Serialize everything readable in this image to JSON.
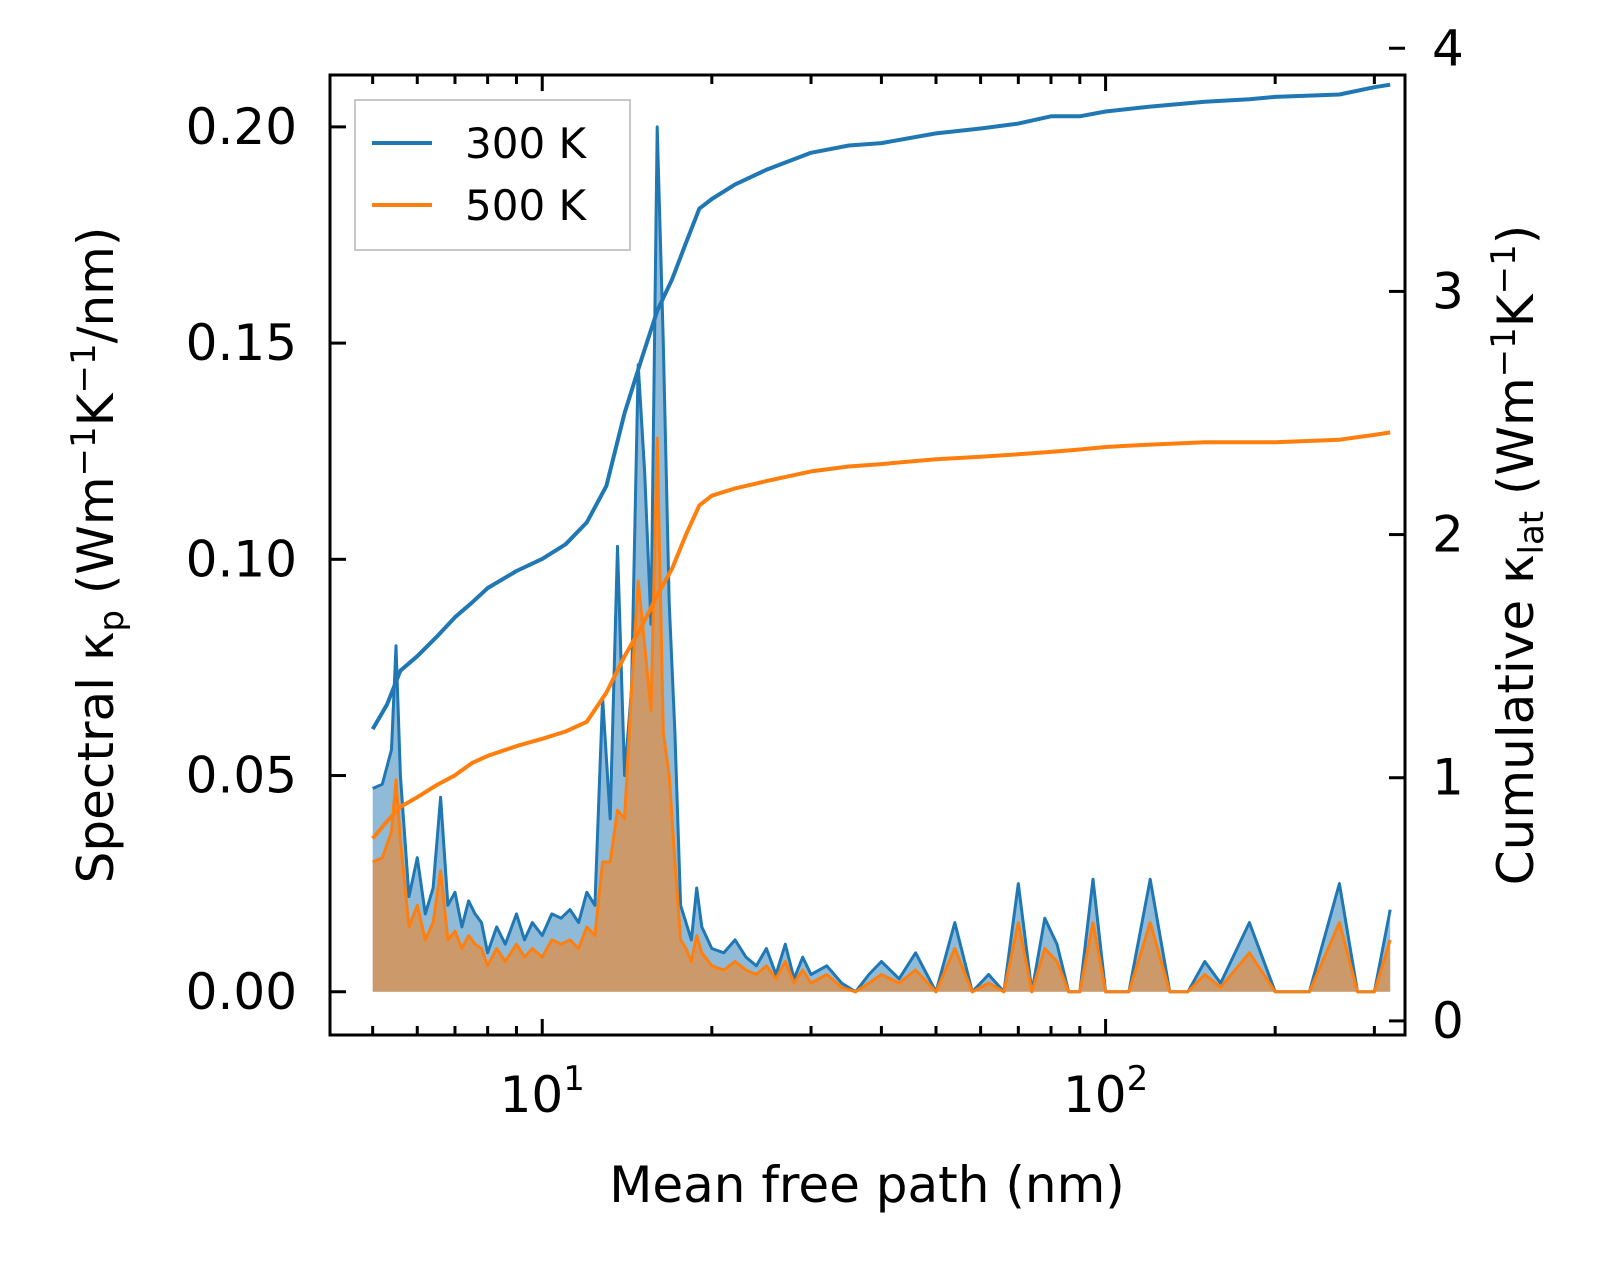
{
  "chart_data": {
    "type": "line",
    "title": "",
    "xlabel": "Mean free path (nm)",
    "ylabel_left": {
      "prefix": "Spectral κ",
      "sub": "p",
      "units_a": " (Wm",
      "sup1": "−1",
      "units_b": "K",
      "sup2": "−1",
      "units_c": "/nm)"
    },
    "ylabel_right": {
      "prefix": "Cumulative κ",
      "sub": "lat",
      "units_a": " (Wm",
      "sup1": "−1",
      "units_b": "K",
      "sup2": "−1",
      "units_c": ")"
    },
    "xscale": "log",
    "xlim": [
      4.2,
      340
    ],
    "ylim_left": [
      -0.01,
      0.212
    ],
    "ylim_right": [
      -0.058,
      3.89
    ],
    "x_ticks": [
      {
        "value": 10,
        "base": "10",
        "exp": "1"
      },
      {
        "value": 100,
        "base": "10",
        "exp": "2"
      }
    ],
    "y_ticks_left": [
      "0.00",
      "0.05",
      "0.10",
      "0.15",
      "0.20"
    ],
    "y_ticks_right": [
      "0",
      "1",
      "2",
      "3",
      "4"
    ],
    "legend": {
      "position": "top-left",
      "entries": [
        {
          "label": "300 K",
          "color": "#1f77b4"
        },
        {
          "label": "500 K",
          "color": "#ff7f0e"
        }
      ]
    },
    "series": [
      {
        "name": "300 K",
        "color": "#1f77b4",
        "axis": "right",
        "kind": "cumulative",
        "x": [
          5,
          5.3,
          5.6,
          6,
          6.5,
          7,
          7.5,
          8,
          9,
          10,
          11,
          12,
          13,
          14,
          15,
          16,
          17,
          18,
          19,
          20,
          22,
          25,
          30,
          35,
          40,
          50,
          60,
          70,
          80,
          90,
          100,
          120,
          150,
          180,
          200,
          260,
          300,
          320
        ],
        "y": [
          1.2,
          1.3,
          1.44,
          1.5,
          1.58,
          1.66,
          1.72,
          1.78,
          1.85,
          1.9,
          1.96,
          2.05,
          2.2,
          2.5,
          2.72,
          2.92,
          3.05,
          3.2,
          3.34,
          3.38,
          3.44,
          3.5,
          3.57,
          3.6,
          3.61,
          3.65,
          3.67,
          3.69,
          3.72,
          3.72,
          3.74,
          3.76,
          3.78,
          3.79,
          3.8,
          3.81,
          3.84,
          3.85
        ]
      },
      {
        "name": "500 K",
        "color": "#ff7f0e",
        "axis": "right",
        "kind": "cumulative",
        "x": [
          5,
          5.3,
          5.6,
          6,
          6.5,
          7,
          7.5,
          8,
          9,
          10,
          11,
          12,
          13,
          14,
          15,
          16,
          17,
          18,
          19,
          20,
          22,
          25,
          30,
          35,
          40,
          50,
          60,
          70,
          80,
          90,
          100,
          120,
          150,
          180,
          200,
          260,
          300,
          320
        ],
        "y": [
          0.75,
          0.82,
          0.88,
          0.92,
          0.97,
          1.01,
          1.06,
          1.09,
          1.13,
          1.16,
          1.19,
          1.23,
          1.35,
          1.5,
          1.62,
          1.75,
          1.86,
          2.0,
          2.12,
          2.16,
          2.19,
          2.22,
          2.26,
          2.28,
          2.29,
          2.31,
          2.32,
          2.33,
          2.34,
          2.35,
          2.36,
          2.37,
          2.38,
          2.38,
          2.38,
          2.39,
          2.41,
          2.42
        ]
      },
      {
        "name": "300 K",
        "color": "#1f77b4",
        "axis": "left",
        "kind": "spectral",
        "x": [
          5,
          5.2,
          5.4,
          5.5,
          5.6,
          5.8,
          6,
          6.2,
          6.4,
          6.6,
          6.8,
          7,
          7.2,
          7.4,
          7.6,
          7.8,
          8,
          8.3,
          8.6,
          9,
          9.3,
          9.6,
          10,
          10.4,
          10.8,
          11.2,
          11.6,
          12,
          12.4,
          12.8,
          13.2,
          13.6,
          14,
          14.4,
          14.8,
          15.2,
          15.6,
          16,
          16.4,
          16.8,
          17.2,
          17.6,
          18,
          18.4,
          18.8,
          19.2,
          20,
          21,
          22,
          23,
          24,
          25,
          26,
          27,
          28,
          29,
          30,
          32,
          34,
          36,
          38,
          40,
          43,
          46,
          50,
          54,
          58,
          62,
          66,
          70,
          74,
          78,
          82,
          86,
          90,
          95,
          100,
          110,
          120,
          130,
          140,
          150,
          160,
          180,
          200,
          230,
          260,
          280,
          300,
          320
        ],
        "y": [
          0.047,
          0.048,
          0.056,
          0.08,
          0.05,
          0.022,
          0.031,
          0.018,
          0.024,
          0.045,
          0.02,
          0.023,
          0.015,
          0.021,
          0.018,
          0.016,
          0.009,
          0.015,
          0.011,
          0.018,
          0.012,
          0.016,
          0.013,
          0.018,
          0.017,
          0.019,
          0.016,
          0.023,
          0.02,
          0.068,
          0.04,
          0.103,
          0.05,
          0.07,
          0.145,
          0.12,
          0.085,
          0.2,
          0.15,
          0.09,
          0.06,
          0.02,
          0.016,
          0.012,
          0.024,
          0.015,
          0.01,
          0.009,
          0.012,
          0.008,
          0.006,
          0.01,
          0.004,
          0.011,
          0.003,
          0.008,
          0.004,
          0.006,
          0.002,
          0.0,
          0.004,
          0.007,
          0.003,
          0.009,
          0.0,
          0.016,
          0.0,
          0.004,
          0.0,
          0.025,
          0.0,
          0.017,
          0.011,
          0.0,
          0.0,
          0.026,
          0.0,
          0.0,
          0.026,
          0.0,
          0.0,
          0.007,
          0.002,
          0.016,
          0.0,
          0.0,
          0.025,
          0.0,
          0.0,
          0.019
        ]
      },
      {
        "name": "500 K",
        "color": "#ff7f0e",
        "axis": "left",
        "kind": "spectral",
        "x": [
          5,
          5.2,
          5.4,
          5.5,
          5.6,
          5.8,
          6,
          6.2,
          6.4,
          6.6,
          6.8,
          7,
          7.2,
          7.4,
          7.6,
          7.8,
          8,
          8.3,
          8.6,
          9,
          9.3,
          9.6,
          10,
          10.4,
          10.8,
          11.2,
          11.6,
          12,
          12.4,
          12.8,
          13.2,
          13.6,
          14,
          14.4,
          14.8,
          15.2,
          15.6,
          16,
          16.4,
          16.8,
          17.2,
          17.6,
          18,
          18.4,
          18.8,
          19.2,
          20,
          21,
          22,
          23,
          24,
          25,
          26,
          27,
          28,
          29,
          30,
          32,
          34,
          36,
          38,
          40,
          43,
          46,
          50,
          54,
          58,
          62,
          66,
          70,
          74,
          78,
          82,
          86,
          90,
          95,
          100,
          110,
          120,
          130,
          140,
          150,
          160,
          180,
          200,
          230,
          260,
          280,
          300,
          320
        ],
        "y": [
          0.03,
          0.031,
          0.037,
          0.049,
          0.035,
          0.015,
          0.02,
          0.012,
          0.016,
          0.028,
          0.012,
          0.014,
          0.01,
          0.013,
          0.011,
          0.01,
          0.006,
          0.01,
          0.007,
          0.011,
          0.008,
          0.01,
          0.008,
          0.012,
          0.011,
          0.012,
          0.01,
          0.015,
          0.013,
          0.03,
          0.03,
          0.042,
          0.04,
          0.07,
          0.095,
          0.08,
          0.065,
          0.128,
          0.06,
          0.05,
          0.03,
          0.012,
          0.01,
          0.007,
          0.013,
          0.009,
          0.006,
          0.005,
          0.007,
          0.005,
          0.004,
          0.006,
          0.003,
          0.007,
          0.002,
          0.005,
          0.002,
          0.004,
          0.001,
          0.0,
          0.002,
          0.004,
          0.002,
          0.005,
          0.0,
          0.01,
          0.0,
          0.002,
          0.0,
          0.016,
          0.0,
          0.01,
          0.007,
          0.0,
          0.0,
          0.016,
          0.0,
          0.0,
          0.016,
          0.0,
          0.0,
          0.004,
          0.001,
          0.009,
          0.0,
          0.0,
          0.016,
          0.0,
          0.0,
          0.012
        ]
      }
    ]
  }
}
